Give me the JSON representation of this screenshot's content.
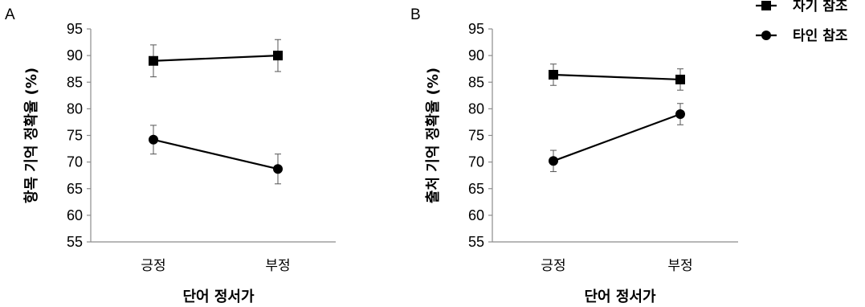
{
  "legend": {
    "items": [
      {
        "label": "자기 참조",
        "marker": "square"
      },
      {
        "label": "타인 참조",
        "marker": "circle"
      }
    ]
  },
  "chart_data": [
    {
      "panel": "A",
      "type": "line",
      "ylabel": "항목 기억 정확율 (%)",
      "xlabel": "단어 정서가",
      "categories": [
        "긍정",
        "부정"
      ],
      "ylim": [
        55,
        95
      ],
      "yticks": [
        55,
        60,
        65,
        70,
        75,
        80,
        85,
        90,
        95
      ],
      "grid": false,
      "series": [
        {
          "name": "자기 참조",
          "marker": "square",
          "values": [
            89.0,
            90.0
          ],
          "errors": [
            3.0,
            3.0
          ]
        },
        {
          "name": "타인 참조",
          "marker": "circle",
          "values": [
            74.2,
            68.7
          ],
          "errors": [
            2.7,
            2.8
          ]
        }
      ]
    },
    {
      "panel": "B",
      "type": "line",
      "ylabel": "출처 기억 정확율 (%)",
      "xlabel": "단어 정서가",
      "categories": [
        "긍정",
        "부정"
      ],
      "ylim": [
        55,
        95
      ],
      "yticks": [
        55,
        60,
        65,
        70,
        75,
        80,
        85,
        90,
        95
      ],
      "grid": false,
      "series": [
        {
          "name": "자기 참조",
          "marker": "square",
          "values": [
            86.4,
            85.5
          ],
          "errors": [
            2.0,
            2.0
          ]
        },
        {
          "name": "타인 참조",
          "marker": "circle",
          "values": [
            70.2,
            79.0
          ],
          "errors": [
            2.0,
            2.0
          ]
        }
      ]
    }
  ]
}
